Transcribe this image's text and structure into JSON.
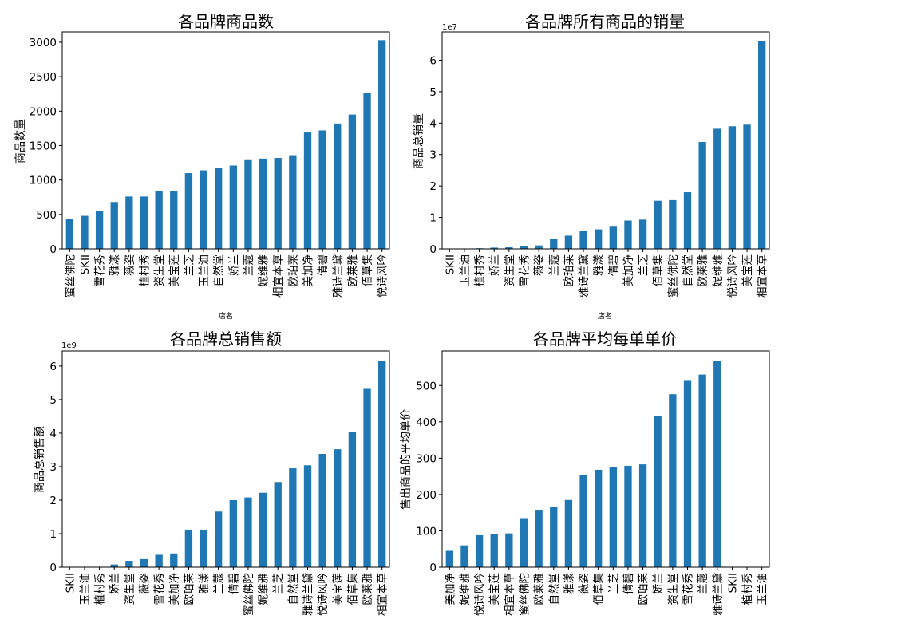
{
  "chart_data": [
    {
      "type": "bar",
      "title": "各品牌商品数",
      "xlabel": "店名",
      "ylabel": "商品数量",
      "ylim": [
        0,
        3150
      ],
      "yticks": [
        0,
        500,
        1000,
        1500,
        2000,
        2500,
        3000
      ],
      "ytick_labels": [
        "0",
        "500",
        "1000",
        "1500",
        "2000",
        "2500",
        "3000"
      ],
      "exponent_label": "",
      "color": "#1f77b4",
      "categories": [
        "蜜丝佛陀",
        "SKII",
        "雪花秀",
        "雅漾",
        "薇姿",
        "植村秀",
        "资生堂",
        "美宝莲",
        "兰芝",
        "玉兰油",
        "自然堂",
        "娇兰",
        "兰蔻",
        "妮维雅",
        "相宜本草",
        "欧珀莱",
        "美加净",
        "倩碧",
        "雅诗兰黛",
        "欧莱雅",
        "佰草集",
        "悦诗风吟"
      ],
      "values": [
        440,
        480,
        550,
        680,
        760,
        760,
        840,
        840,
        1100,
        1140,
        1180,
        1210,
        1300,
        1310,
        1320,
        1360,
        1690,
        1720,
        1820,
        1950,
        2270,
        3030
      ]
    },
    {
      "type": "bar",
      "title": "各品牌所有商品的销量",
      "xlabel": "店名",
      "ylabel": "商品总销量",
      "ylim": [
        0,
        6.9
      ],
      "yticks": [
        0,
        1,
        2,
        3,
        4,
        5,
        6
      ],
      "ytick_labels": [
        "0",
        "1",
        "2",
        "3",
        "4",
        "5",
        "6"
      ],
      "exponent_label": "1e7",
      "color": "#1f77b4",
      "categories": [
        "SKII",
        "玉兰油",
        "植村秀",
        "娇兰",
        "资生堂",
        "雪花秀",
        "薇姿",
        "兰蔻",
        "欧珀莱",
        "雅诗兰黛",
        "雅漾",
        "倩碧",
        "美加净",
        "兰芝",
        "佰草集",
        "蜜丝佛陀",
        "自然堂",
        "欧莱雅",
        "妮维雅",
        "悦诗风吟",
        "美宝莲",
        "相宜本草"
      ],
      "values": [
        0.0,
        0.01,
        0.02,
        0.04,
        0.05,
        0.1,
        0.11,
        0.33,
        0.42,
        0.57,
        0.62,
        0.73,
        0.9,
        0.93,
        1.53,
        1.55,
        1.8,
        3.4,
        3.82,
        3.9,
        3.95,
        6.6
      ]
    },
    {
      "type": "bar",
      "title": "各品牌总销售额",
      "xlabel": "",
      "ylabel": "商品总销售额",
      "ylim": [
        0,
        6.45
      ],
      "yticks": [
        0,
        1,
        2,
        3,
        4,
        5,
        6
      ],
      "ytick_labels": [
        "0",
        "1",
        "2",
        "3",
        "4",
        "5",
        "6"
      ],
      "exponent_label": "1e9",
      "color": "#1f77b4",
      "categories": [
        "SKII",
        "玉兰油",
        "植村秀",
        "娇兰",
        "资生堂",
        "薇姿",
        "雪花秀",
        "美加净",
        "欧珀莱",
        "雅漾",
        "兰蔻",
        "倩碧",
        "蜜丝佛陀",
        "妮维雅",
        "兰芝",
        "自然堂",
        "雅诗兰黛",
        "悦诗风吟",
        "美宝莲",
        "佰草集",
        "欧莱雅",
        "相宜本草"
      ],
      "values": [
        0.0,
        0.0,
        0.01,
        0.08,
        0.19,
        0.24,
        0.37,
        0.41,
        1.12,
        1.12,
        1.66,
        2.0,
        2.08,
        2.22,
        2.54,
        2.95,
        3.04,
        3.38,
        3.52,
        4.03,
        5.32,
        6.15
      ]
    },
    {
      "type": "bar",
      "title": "各品牌平均每单单价",
      "xlabel": "",
      "ylabel": "售出商品的平均单价",
      "ylim": [
        0,
        595
      ],
      "yticks": [
        0,
        100,
        200,
        300,
        400,
        500
      ],
      "ytick_labels": [
        "0",
        "100",
        "200",
        "300",
        "400",
        "500"
      ],
      "exponent_label": "",
      "color": "#1f77b4",
      "categories": [
        "美加净",
        "妮维雅",
        "悦诗风吟",
        "美宝莲",
        "相宜本草",
        "蜜丝佛陀",
        "欧莱雅",
        "自然堂",
        "雅漾",
        "薇姿",
        "佰草集",
        "兰芝",
        "倩碧",
        "欧珀莱",
        "娇兰",
        "资生堂",
        "雪花秀",
        "兰蔻",
        "雅诗兰黛",
        "SKII",
        "植村秀",
        "玉兰油"
      ],
      "values": [
        45,
        60,
        88,
        91,
        93,
        135,
        158,
        165,
        185,
        254,
        268,
        276,
        279,
        283,
        417,
        476,
        515,
        530,
        567,
        0,
        0,
        0
      ]
    }
  ]
}
